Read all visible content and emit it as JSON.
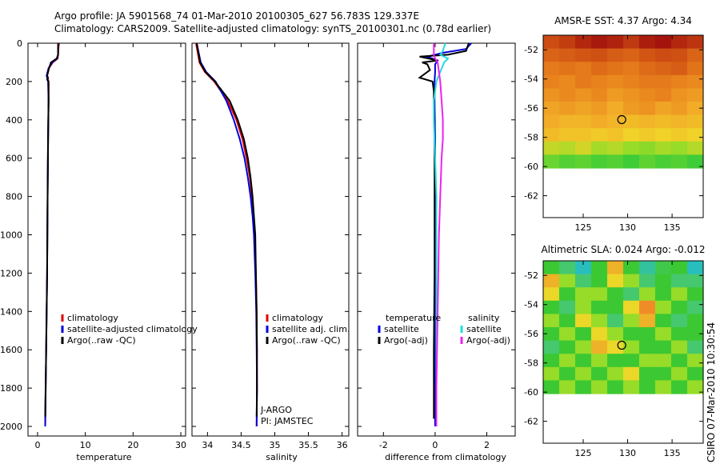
{
  "title": {
    "line1": "Argo profile: JA 5901568_74 01-Mar-2010 20100305_627 56.783S 129.337E",
    "line2": "Climatology: CARS2009. Satellite-adjusted climatology: synTS_20100301.nc (0.78d earlier)"
  },
  "credit": "CSIRO 07-Mar-2010 10:30:54",
  "colors": {
    "climatology": "#dd0000",
    "satellite": "#0000dd",
    "argo": "#000000",
    "cyan": "#22dddd",
    "magenta": "#ee22ee"
  },
  "chart_data": [
    {
      "type": "line",
      "name": "temperature-panel",
      "xlabel": "temperature",
      "ylabel": "",
      "xlim": [
        -2,
        31
      ],
      "ylim": [
        0,
        2050
      ],
      "y_reversed": true,
      "x_ticks": [
        0,
        10,
        20,
        30
      ],
      "y_ticks": [
        0,
        200,
        400,
        600,
        800,
        1000,
        1200,
        1400,
        1600,
        1800,
        2000
      ],
      "legend": {
        "position": "middle-left",
        "entries": [
          "climatology",
          "satellite-adjusted climatology",
          "Argo(..raw -QC)"
        ]
      },
      "series": [
        {
          "name": "climatology",
          "color": "#dd0000",
          "depth": [
            0,
            20,
            60,
            80,
            100,
            130,
            150,
            170,
            180,
            200,
            300,
            500,
            800,
            1200,
            1600,
            2000
          ],
          "values": [
            4.5,
            4.4,
            4.3,
            4.2,
            3.2,
            2.4,
            2.2,
            2.0,
            2.1,
            2.3,
            2.3,
            2.2,
            2.1,
            2.0,
            1.8,
            1.6
          ]
        },
        {
          "name": "satellite-adjusted climatology",
          "color": "#0000dd",
          "depth": [
            0,
            20,
            60,
            80,
            100,
            130,
            150,
            170,
            180,
            200,
            300,
            500,
            800,
            1200,
            1600,
            2000
          ],
          "values": [
            4.4,
            4.3,
            4.3,
            4.1,
            3.1,
            2.3,
            2.1,
            1.9,
            2.0,
            2.2,
            2.3,
            2.2,
            2.1,
            2.0,
            1.8,
            1.6
          ]
        },
        {
          "name": "Argo(..raw -QC)",
          "color": "#000000",
          "depth": [
            0,
            20,
            60,
            80,
            100,
            130,
            150,
            170,
            180,
            190,
            200,
            300,
            500,
            800,
            1200,
            1600,
            1950
          ],
          "values": [
            4.3,
            4.3,
            4.3,
            4.0,
            2.8,
            2.4,
            2.2,
            2.0,
            2.2,
            2.0,
            2.3,
            2.3,
            2.2,
            2.1,
            2.0,
            1.8,
            1.6
          ]
        }
      ]
    },
    {
      "type": "line",
      "name": "salinity-panel",
      "xlabel": "salinity",
      "ylabel": "",
      "xlim": [
        33.77,
        36.1
      ],
      "ylim": [
        0,
        2050
      ],
      "y_reversed": true,
      "x_ticks": [
        34,
        34.5,
        35,
        35.5,
        36
      ],
      "y_ticks": [
        0,
        200,
        400,
        600,
        800,
        1000,
        1200,
        1400,
        1600,
        1800,
        2000
      ],
      "legend": {
        "position": "middle-left",
        "entries": [
          "climatology",
          "satellite adj. clim.",
          "Argo(..raw -QC)"
        ]
      },
      "annotations": [
        "J-ARGO",
        "PI: JAMSTEC"
      ],
      "series": [
        {
          "name": "climatology",
          "color": "#dd0000",
          "depth": [
            0,
            100,
            150,
            200,
            300,
            400,
            500,
            600,
            700,
            800,
            900,
            1000,
            1200,
            1400,
            1600,
            1800,
            2000
          ],
          "values": [
            33.83,
            33.88,
            33.96,
            34.1,
            34.3,
            34.43,
            34.52,
            34.58,
            34.63,
            34.66,
            34.68,
            34.7,
            34.72,
            34.73,
            34.735,
            34.735,
            34.73
          ]
        },
        {
          "name": "satellite adj. clim.",
          "color": "#0000dd",
          "depth": [
            0,
            100,
            150,
            200,
            300,
            400,
            500,
            600,
            700,
            800,
            900,
            1000,
            1200,
            1400,
            1600,
            1800,
            2000
          ],
          "values": [
            33.84,
            33.9,
            33.98,
            34.12,
            34.28,
            34.39,
            34.48,
            34.55,
            34.6,
            34.64,
            34.67,
            34.69,
            34.71,
            34.725,
            34.73,
            34.735,
            34.73
          ]
        },
        {
          "name": "Argo(..raw -QC)",
          "color": "#000000",
          "depth": [
            0,
            100,
            150,
            200,
            300,
            400,
            500,
            600,
            700,
            800,
            900,
            1000,
            1200,
            1400,
            1600,
            1800,
            1950
          ],
          "values": [
            33.84,
            33.89,
            33.97,
            34.11,
            34.33,
            34.45,
            34.54,
            34.6,
            34.64,
            34.67,
            34.69,
            34.71,
            34.72,
            34.73,
            34.735,
            34.735,
            34.73
          ]
        }
      ]
    },
    {
      "type": "line",
      "name": "difference-panel",
      "xlabel": "difference from climatology",
      "ylabel": "",
      "xlim": [
        -3,
        3.1
      ],
      "ylim": [
        0,
        2050
      ],
      "y_reversed": true,
      "x_ticks": [
        -2,
        0,
        2
      ],
      "y_ticks": [
        0,
        200,
        400,
        600,
        800,
        1000,
        1200,
        1400,
        1600,
        1800,
        2000
      ],
      "legend": {
        "position": "middle",
        "entries": [
          "temperature",
          "satellite",
          "Argo(-adj)",
          "salinity",
          "satellite",
          "Argo(-adj)"
        ]
      },
      "series": [
        {
          "name": "temperature satellite",
          "color": "#0000dd",
          "depth": [
            0,
            30,
            50,
            70,
            90,
            110,
            150,
            200,
            300,
            500,
            800,
            1200,
            1600,
            2000
          ],
          "values": [
            1.4,
            1.2,
            0.3,
            -0.3,
            0.1,
            0.0,
            0.0,
            -0.02,
            -0.02,
            0.0,
            0.0,
            0.0,
            0.0,
            0.0
          ]
        },
        {
          "name": "temperature Argo(-adj)",
          "color": "#000000",
          "depth": [
            0,
            40,
            60,
            70,
            90,
            100,
            110,
            140,
            180,
            200,
            250,
            300,
            500,
            800,
            1200,
            1600,
            1960
          ],
          "values": [
            1.3,
            1.2,
            0.5,
            -0.6,
            0.1,
            -0.5,
            -0.3,
            -0.2,
            -0.6,
            -0.1,
            -0.05,
            -0.05,
            -0.02,
            -0.02,
            -0.02,
            -0.05,
            -0.05
          ]
        },
        {
          "name": "salinity satellite",
          "color": "#22dddd",
          "depth": [
            0,
            40,
            60,
            80,
            100,
            150,
            200,
            300,
            400,
            600,
            800,
            1000,
            1400,
            1800,
            2000
          ],
          "values": [
            0.4,
            0.3,
            0.2,
            0.5,
            0.35,
            0.2,
            0.05,
            -0.05,
            -0.05,
            0.0,
            0.05,
            0.05,
            0.05,
            0.05,
            0.05
          ]
        },
        {
          "name": "salinity Argo(-adj)",
          "color": "#ee22ee",
          "depth": [
            0,
            60,
            80,
            100,
            150,
            200,
            300,
            400,
            500,
            600,
            800,
            1000,
            1400,
            1800,
            2000
          ],
          "values": [
            -0.05,
            -0.05,
            0.0,
            0.1,
            0.15,
            0.2,
            0.25,
            0.3,
            0.3,
            0.25,
            0.2,
            0.15,
            0.1,
            0.05,
            0.05
          ]
        }
      ]
    },
    {
      "type": "heatmap",
      "name": "sst-map",
      "title": "AMSR-E SST: 4.37 Argo: 4.34",
      "xlim": [
        120.5,
        138.5
      ],
      "ylim": [
        -63.5,
        -51
      ],
      "x_ticks": [
        125,
        130,
        135
      ],
      "y_ticks": [
        -52,
        -54,
        -56,
        -58,
        -60,
        -62
      ],
      "data_valid_ymin": -60.1,
      "marker": {
        "lon": 129.337,
        "lat": -56.783
      },
      "rows_label": "SST (deg C), north to south",
      "grid": [
        [
          5.4,
          5.7,
          6.2,
          6.5,
          6.3,
          5.8,
          6.4,
          6.6,
          6.2,
          5.9
        ],
        [
          5.0,
          5.1,
          5.2,
          5.3,
          5.1,
          5.0,
          5.2,
          5.4,
          5.3,
          5.0
        ],
        [
          4.7,
          4.8,
          4.7,
          4.9,
          4.8,
          4.7,
          4.9,
          5.0,
          5.1,
          4.8
        ],
        [
          4.6,
          4.5,
          4.7,
          4.6,
          4.5,
          4.6,
          4.7,
          4.7,
          4.6,
          4.5
        ],
        [
          4.4,
          4.5,
          4.4,
          4.5,
          4.3,
          4.4,
          4.5,
          4.6,
          4.4,
          4.3
        ],
        [
          4.2,
          4.3,
          4.2,
          4.3,
          4.1,
          4.3,
          4.4,
          4.2,
          4.3,
          4.1
        ],
        [
          4.1,
          4.0,
          4.0,
          4.1,
          4.0,
          3.9,
          4.0,
          3.9,
          4.0,
          3.9
        ],
        [
          3.9,
          3.8,
          3.8,
          3.7,
          3.8,
          3.6,
          3.7,
          3.6,
          3.7,
          3.6
        ],
        [
          3.3,
          3.2,
          3.4,
          3.1,
          3.2,
          3.0,
          2.9,
          3.1,
          3.0,
          3.2
        ],
        [
          2.6,
          2.4,
          2.5,
          2.3,
          2.4,
          2.2,
          2.5,
          2.3,
          2.4,
          2.2
        ]
      ]
    },
    {
      "type": "heatmap",
      "name": "sla-map",
      "title": "Altimetric SLA: 0.024 Argo: -0.012",
      "xlim": [
        120.5,
        138.5
      ],
      "ylim": [
        -63.5,
        -51
      ],
      "x_ticks": [
        125,
        130,
        135
      ],
      "y_ticks": [
        -52,
        -54,
        -56,
        -58,
        -60,
        -62
      ],
      "data_valid_ymin": -60.1,
      "marker": {
        "lon": 129.337,
        "lat": -56.783
      },
      "rows_label": "SLA (m), north to south",
      "grid": [
        [
          0.0,
          -0.05,
          -0.1,
          0.0,
          0.15,
          0.0,
          -0.08,
          -0.02,
          0.0,
          -0.1
        ],
        [
          0.15,
          0.05,
          -0.05,
          0.0,
          0.1,
          0.05,
          -0.05,
          0.0,
          -0.05,
          -0.05
        ],
        [
          0.1,
          0.0,
          0.05,
          0.05,
          0.0,
          -0.05,
          0.05,
          0.0,
          0.05,
          0.0
        ],
        [
          0.0,
          -0.05,
          0.05,
          0.0,
          0.0,
          0.1,
          0.2,
          0.05,
          0.0,
          -0.05
        ],
        [
          0.05,
          0.0,
          0.1,
          0.05,
          -0.05,
          0.05,
          0.15,
          0.0,
          -0.05,
          0.0
        ],
        [
          0.0,
          0.05,
          0.0,
          0.1,
          0.05,
          0.0,
          0.0,
          0.05,
          0.0,
          0.0
        ],
        [
          -0.05,
          0.0,
          0.05,
          0.15,
          0.1,
          0.05,
          0.0,
          0.0,
          0.05,
          -0.05
        ],
        [
          0.0,
          0.05,
          0.0,
          0.05,
          0.0,
          0.0,
          0.05,
          0.05,
          0.0,
          0.05
        ],
        [
          0.05,
          0.0,
          0.05,
          0.0,
          0.05,
          0.1,
          0.0,
          0.0,
          0.05,
          0.0
        ],
        [
          0.0,
          0.05,
          0.0,
          0.05,
          0.0,
          0.05,
          0.0,
          0.05,
          0.0,
          0.05
        ]
      ]
    }
  ]
}
